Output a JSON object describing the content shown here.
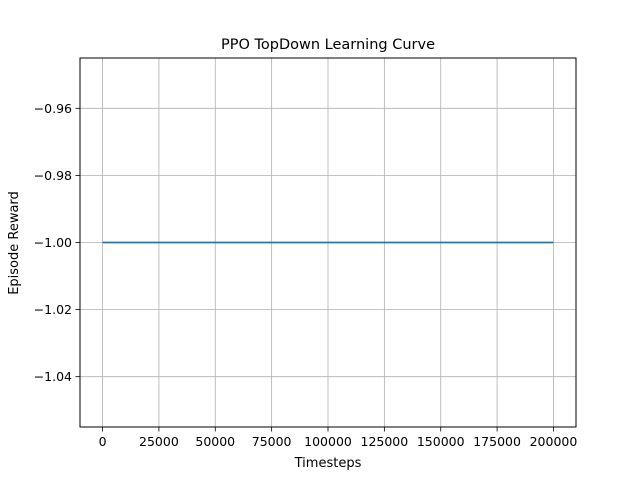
{
  "chart_data": {
    "type": "line",
    "title": "PPO TopDown Learning Curve",
    "xlabel": "Timesteps",
    "ylabel": "Episode Reward",
    "xlim": [
      -10000,
      210000
    ],
    "ylim": [
      -1.055,
      -0.945
    ],
    "x_ticks": [
      0,
      25000,
      50000,
      75000,
      100000,
      125000,
      150000,
      175000,
      200000
    ],
    "x_tick_labels": [
      "0",
      "25000",
      "50000",
      "75000",
      "100000",
      "125000",
      "150000",
      "175000",
      "200000"
    ],
    "y_ticks": [
      -0.96,
      -0.98,
      -1.0,
      -1.02,
      -1.04
    ],
    "y_tick_labels": [
      "−0.96",
      "−0.98",
      "−1.00",
      "−1.02",
      "−1.04"
    ],
    "grid": true,
    "series": [
      {
        "color": "#1f77b4",
        "x": [
          0,
          200000
        ],
        "y": [
          -1.0,
          -1.0
        ]
      }
    ]
  }
}
